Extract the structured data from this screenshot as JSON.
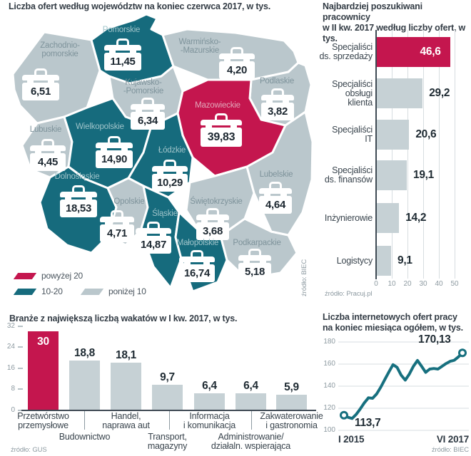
{
  "colors": {
    "high": "#c4164e",
    "mid": "#166b7d",
    "low": "#bac7cc",
    "bar_gray": "#c6d1d5",
    "line_teal": "#17707f",
    "grid": "#d7dde0",
    "axis_dark": "#3f4a54",
    "title_text": "#333c45",
    "value_text": "#1e2a32"
  },
  "chart_data": [
    {
      "type": "map",
      "title": "Liczba ofert według województw na koniec czerwca 2017, w tys.",
      "source": "źródło: BIEC",
      "legend": [
        {
          "label": "powyżej 20",
          "tier": "high"
        },
        {
          "label": "10-20",
          "tier": "mid"
        },
        {
          "label": "poniżej 10",
          "tier": "low"
        }
      ],
      "regions": [
        {
          "id": "zachodniopomorskie",
          "name": "Zachodnio-\npomorskie",
          "value": "6,51",
          "tier": "low"
        },
        {
          "id": "pomorskie",
          "name": "Pomorskie",
          "value": "11,45",
          "tier": "mid"
        },
        {
          "id": "warminsko-mazurskie",
          "name": "Warmińsko-\n-Mazurskie",
          "value": "4,20",
          "tier": "low"
        },
        {
          "id": "podlaskie",
          "name": "Podlaskie",
          "value": "3,82",
          "tier": "low"
        },
        {
          "id": "kujawsko-pomorskie",
          "name": "Kujawsko-\n-Pomorskie",
          "value": "6,34",
          "tier": "low"
        },
        {
          "id": "mazowieckie",
          "name": "Mazowieckie",
          "value": "39,83",
          "tier": "high"
        },
        {
          "id": "lubuskie",
          "name": "Lubuskie",
          "value": "4,45",
          "tier": "low"
        },
        {
          "id": "wielkopolskie",
          "name": "Wielkopolskie",
          "value": "14,90",
          "tier": "mid"
        },
        {
          "id": "lodzkie",
          "name": "Łódzkie",
          "value": "10,29",
          "tier": "mid"
        },
        {
          "id": "dolnoslaskie",
          "name": "Dolnośląskie",
          "value": "18,53",
          "tier": "mid"
        },
        {
          "id": "opolskie",
          "name": "Opolskie",
          "value": "4,71",
          "tier": "low"
        },
        {
          "id": "slaskie",
          "name": "Śląskie",
          "value": "14,87",
          "tier": "mid"
        },
        {
          "id": "swietokrzyskie",
          "name": "Świętokrzyskie",
          "value": "3,68",
          "tier": "low"
        },
        {
          "id": "malopolskie",
          "name": "Małopolskie",
          "value": "16,74",
          "tier": "mid"
        },
        {
          "id": "podkarpackie",
          "name": "Podkarpackie",
          "value": "5,18",
          "tier": "low"
        },
        {
          "id": "lubelskie",
          "name": "Lubelskie",
          "value": "4,64",
          "tier": "low"
        }
      ]
    },
    {
      "type": "bar",
      "orientation": "horizontal",
      "title": "Najbardziej poszukiwani pracownicy\nw II kw. 2017 według liczby ofert, w tys.",
      "source": "źródło: Pracuj.pl",
      "categories": [
        "Specjaliści\nds. sprzedaży",
        "Specjaliści\nobsługi\nklienta",
        "Specjaliści\nIT",
        "Specjaliści\nds. finansów",
        "Inżynierowie",
        "Logistycy"
      ],
      "values": [
        46.6,
        29.2,
        20.6,
        19.1,
        14.2,
        9.1
      ],
      "value_labels": [
        "46,6",
        "29,2",
        "20,6",
        "19,1",
        "14,2",
        "9,1"
      ],
      "highlight_index": 0,
      "x_ticks": [
        0,
        10,
        20,
        30,
        40,
        50
      ],
      "xlim": [
        0,
        50
      ]
    },
    {
      "type": "bar",
      "orientation": "vertical",
      "title": "Branże z największą liczbą wakatów w I kw. 2017, w tys.",
      "source": "źródło: GUS",
      "categories": [
        "Przetwórstwo\nprzemysłowe",
        "Budownictwo",
        "Handel,\nnaprawa aut",
        "Transport,\nmagazyny",
        "Informacja\ni komunikacja",
        "Administrowanie/\ndziałaln. wspierająca",
        "Zakwaterowanie\ni gastronomia"
      ],
      "label_rows": [
        1,
        2,
        1,
        2,
        1,
        2,
        1
      ],
      "values": [
        30,
        18.8,
        18.1,
        9.7,
        6.4,
        6.4,
        5.9
      ],
      "value_labels": [
        "30",
        "18,8",
        "18,1",
        "9,7",
        "6,4",
        "6,4",
        "5,9"
      ],
      "highlight_index": 0,
      "y_ticks": [
        32,
        24,
        16,
        8,
        0
      ],
      "ylim": [
        0,
        32
      ]
    },
    {
      "type": "line",
      "title": "Liczba internetowych ofert pracy\nna koniec miesiąca ogółem, w tys.",
      "source": "źródło: BIEC",
      "x_start_label": "I 2015",
      "x_end_label": "VI 2017",
      "first_value_label": "113,7",
      "last_value_label": "170,13",
      "y_ticks": [
        180,
        160,
        140,
        120,
        100
      ],
      "ylim": [
        100,
        180
      ],
      "values": [
        113.7,
        111.8,
        110.8,
        114.5,
        119.5,
        125,
        129.5,
        129,
        133,
        139,
        146,
        153,
        159.5,
        157,
        150,
        145.5,
        151,
        158,
        163.3,
        158,
        152.5,
        155.5,
        156,
        155.5,
        158,
        160.5,
        162.5,
        163.5,
        166.5,
        170.13
      ]
    }
  ]
}
